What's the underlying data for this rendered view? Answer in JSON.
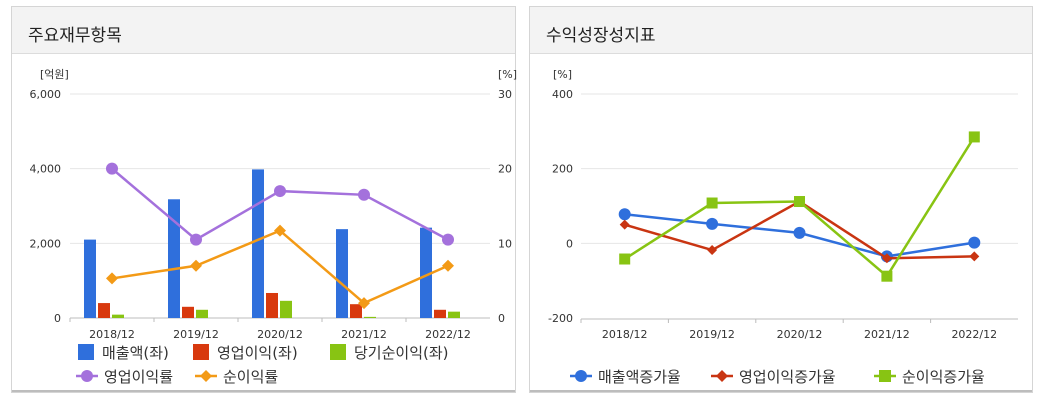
{
  "left_panel": {
    "title": "주요재무항목"
  },
  "right_panel": {
    "title": "수익성장성지표"
  },
  "chart_data": [
    {
      "type": "bar+line",
      "title": "주요재무항목",
      "categories": [
        "2018/12",
        "2019/12",
        "2020/12",
        "2021/12",
        "2022/12"
      ],
      "left_axis": {
        "unit": "[억원]",
        "ylim": [
          0,
          6000
        ],
        "ticks": [
          0,
          2000,
          4000,
          6000
        ],
        "tick_labels": [
          "0",
          "2,000",
          "4,000",
          "6,000"
        ]
      },
      "right_axis": {
        "unit": "[%]",
        "ylim": [
          0,
          30
        ],
        "ticks": [
          0,
          10,
          20,
          30
        ],
        "tick_labels": [
          "0",
          "10",
          "20",
          "30"
        ]
      },
      "bar_series": [
        {
          "name": "매출액(좌)",
          "color": "#2f6fdc",
          "values": [
            2100,
            3180,
            3980,
            2380,
            2420
          ]
        },
        {
          "name": "영업이익(좌)",
          "color": "#d8390e",
          "values": [
            400,
            300,
            670,
            370,
            220
          ]
        },
        {
          "name": "당기순이익(좌)",
          "color": "#88c413",
          "values": [
            90,
            220,
            460,
            30,
            170
          ]
        }
      ],
      "line_series": [
        {
          "name": "영업이익률",
          "color": "#a471dc",
          "marker": "circle",
          "values": [
            20.0,
            10.5,
            17.0,
            16.5,
            10.5
          ]
        },
        {
          "name": "순이익률",
          "color": "#f39a16",
          "marker": "diamond",
          "values": [
            5.3,
            7.0,
            11.7,
            2.0,
            7.0
          ]
        }
      ]
    },
    {
      "type": "line",
      "title": "수익성장성지표",
      "categories": [
        "2018/12",
        "2019/12",
        "2020/12",
        "2021/12",
        "2022/12"
      ],
      "y_axis": {
        "unit": "[%]",
        "ylim": [
          -200,
          400
        ],
        "ticks": [
          -200,
          0,
          200,
          400
        ],
        "tick_labels": [
          "-200",
          "0",
          "200",
          "400"
        ]
      },
      "series": [
        {
          "name": "매출액증가율",
          "color": "#2f6fdc",
          "marker": "circle",
          "values": [
            78,
            52,
            28,
            -35,
            2
          ]
        },
        {
          "name": "영업이익증가율",
          "color": "#c93512",
          "marker": "diamond",
          "values": [
            50,
            -18,
            112,
            -40,
            -35
          ]
        },
        {
          "name": "순이익증가율",
          "color": "#88c413",
          "marker": "square",
          "values": [
            -42,
            108,
            112,
            -88,
            285
          ]
        }
      ]
    }
  ]
}
